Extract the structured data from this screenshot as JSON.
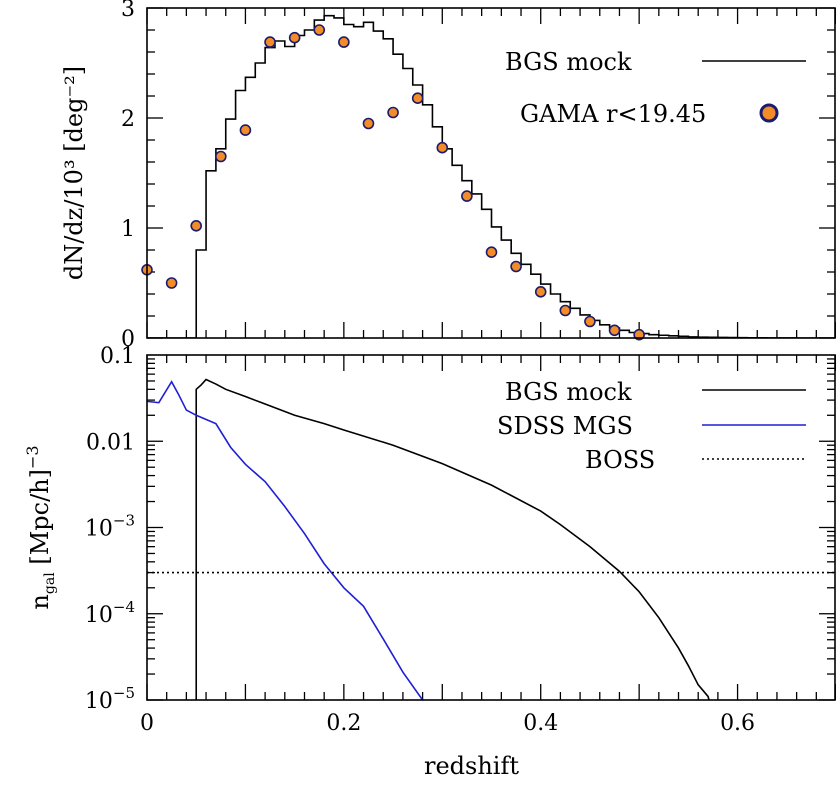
{
  "chart_data": [
    {
      "type": "line",
      "panel": "top",
      "xlabel": "",
      "ylabel": "dN/dz/10³ [deg⁻²]",
      "xlim": [
        0,
        0.7
      ],
      "ylim": [
        0,
        3
      ],
      "y_ticks": [
        0,
        1,
        2,
        3
      ],
      "y_tick_labels": [
        "0",
        "1",
        "2",
        "3"
      ],
      "x_tick_labels": [],
      "grid": false,
      "legend": "top-right",
      "series": [
        {
          "name": "BGS mock",
          "style": "steps",
          "color": "#000000",
          "bin_width": 0.01,
          "bin_starts": [
            0,
            0.01,
            0.02,
            0.03,
            0.04,
            0.05,
            0.06,
            0.07,
            0.08,
            0.09,
            0.1,
            0.11,
            0.12,
            0.13,
            0.14,
            0.15,
            0.16,
            0.17,
            0.18,
            0.19,
            0.2,
            0.21,
            0.22,
            0.23,
            0.24,
            0.25,
            0.26,
            0.27,
            0.28,
            0.29,
            0.3,
            0.31,
            0.32,
            0.33,
            0.34,
            0.35,
            0.36,
            0.37,
            0.38,
            0.39,
            0.4,
            0.41,
            0.42,
            0.43,
            0.44,
            0.45,
            0.46,
            0.47,
            0.48,
            0.49,
            0.5,
            0.51,
            0.52,
            0.53,
            0.54,
            0.55,
            0.56,
            0.57,
            0.58,
            0.59,
            0.6,
            0.61,
            0.62,
            0.63,
            0.64,
            0.65,
            0.66,
            0.67,
            0.68,
            0.69
          ],
          "values": [
            0,
            0,
            0,
            0,
            0,
            0.8,
            1.52,
            1.72,
            1.99,
            2.25,
            2.37,
            2.5,
            2.64,
            2.7,
            2.65,
            2.75,
            2.8,
            2.89,
            2.93,
            2.91,
            2.85,
            2.83,
            2.87,
            2.79,
            2.72,
            2.58,
            2.45,
            2.3,
            2.12,
            1.92,
            1.72,
            1.57,
            1.43,
            1.31,
            1.17,
            1.01,
            0.89,
            0.77,
            0.67,
            0.58,
            0.49,
            0.4,
            0.33,
            0.27,
            0.21,
            0.16,
            0.12,
            0.09,
            0.07,
            0.05,
            0.04,
            0.03,
            0.025,
            0.02,
            0.015,
            0.01,
            0.008,
            0.006,
            0.005,
            0.004,
            0.003,
            0.002,
            0.002,
            0.001,
            0.001,
            0.001,
            0,
            0,
            0,
            0
          ]
        },
        {
          "name": "GAMA r<19.45",
          "style": "points",
          "color": "#f28c28",
          "edge_color": "#1c1c6e",
          "x": [
            0,
            0.025,
            0.05,
            0.075,
            0.1,
            0.125,
            0.15,
            0.175,
            0.2,
            0.225,
            0.25,
            0.275,
            0.3,
            0.325,
            0.35,
            0.375,
            0.4,
            0.425,
            0.45,
            0.475,
            0.5
          ],
          "y": [
            0.62,
            0.5,
            1.02,
            1.65,
            1.89,
            2.69,
            2.73,
            2.8,
            2.69,
            1.95,
            2.05,
            2.18,
            1.73,
            1.29,
            0.78,
            0.65,
            0.42,
            0.25,
            0.15,
            0.07,
            0.03
          ]
        }
      ]
    },
    {
      "type": "line",
      "panel": "bottom",
      "xlabel": "redshift",
      "ylabel": "n_gal [Mpc/h]⁻³",
      "ylabel_main": "n",
      "ylabel_sub": "gal",
      "ylabel_rest": " [Mpc/h]",
      "ylabel_sup": "−3",
      "xlim": [
        0,
        0.7
      ],
      "ylim": [
        1e-05,
        0.1
      ],
      "yscale": "log",
      "x_ticks": [
        0,
        0.2,
        0.4,
        0.6
      ],
      "x_tick_labels": [
        "0",
        "0.2",
        "0.4",
        "0.6"
      ],
      "y_ticks": [
        0.1,
        0.01,
        0.001,
        0.0001,
        1e-05
      ],
      "y_tick_labels": [
        {
          "base": "0.1",
          "exp": ""
        },
        {
          "base": "0.01",
          "exp": ""
        },
        {
          "base": "10",
          "exp": "−3"
        },
        {
          "base": "10",
          "exp": "−4"
        },
        {
          "base": "10",
          "exp": "−5"
        }
      ],
      "grid": false,
      "legend": "top-right",
      "series": [
        {
          "name": "BGS mock",
          "color": "#000000",
          "dash": "",
          "x": [
            0.05,
            0.05,
            0.055,
            0.06,
            0.07,
            0.08,
            0.1,
            0.12,
            0.15,
            0.18,
            0.2,
            0.25,
            0.3,
            0.35,
            0.4,
            0.42,
            0.45,
            0.48,
            0.5,
            0.52,
            0.54,
            0.55,
            0.56,
            0.57,
            0.571
          ],
          "y": [
            1e-05,
            0.04,
            0.045,
            0.052,
            0.046,
            0.04,
            0.033,
            0.027,
            0.02,
            0.016,
            0.0135,
            0.009,
            0.0055,
            0.0031,
            0.00155,
            0.00108,
            0.0006,
            0.00031,
            0.00018,
            9e-05,
            4e-05,
            2.5e-05,
            1.5e-05,
            1.1e-05,
            1e-05
          ]
        },
        {
          "name": "SDSS MGS",
          "color": "#1f1fd6",
          "dash": "",
          "x": [
            0,
            0.012,
            0.025,
            0.032,
            0.04,
            0.05,
            0.07,
            0.085,
            0.1,
            0.12,
            0.14,
            0.16,
            0.18,
            0.2,
            0.22,
            0.24,
            0.26,
            0.28
          ],
          "y": [
            0.029,
            0.028,
            0.049,
            0.035,
            0.023,
            0.02,
            0.016,
            0.0085,
            0.0054,
            0.0034,
            0.00175,
            0.00085,
            0.00038,
            0.0002,
            0.000122,
            5.1e-05,
            2.1e-05,
            1e-05
          ]
        },
        {
          "name": "BOSS",
          "color": "#000000",
          "dash": "2,3",
          "x": [
            0,
            0.7
          ],
          "y": [
            0.0003,
            0.0003
          ]
        }
      ]
    }
  ]
}
